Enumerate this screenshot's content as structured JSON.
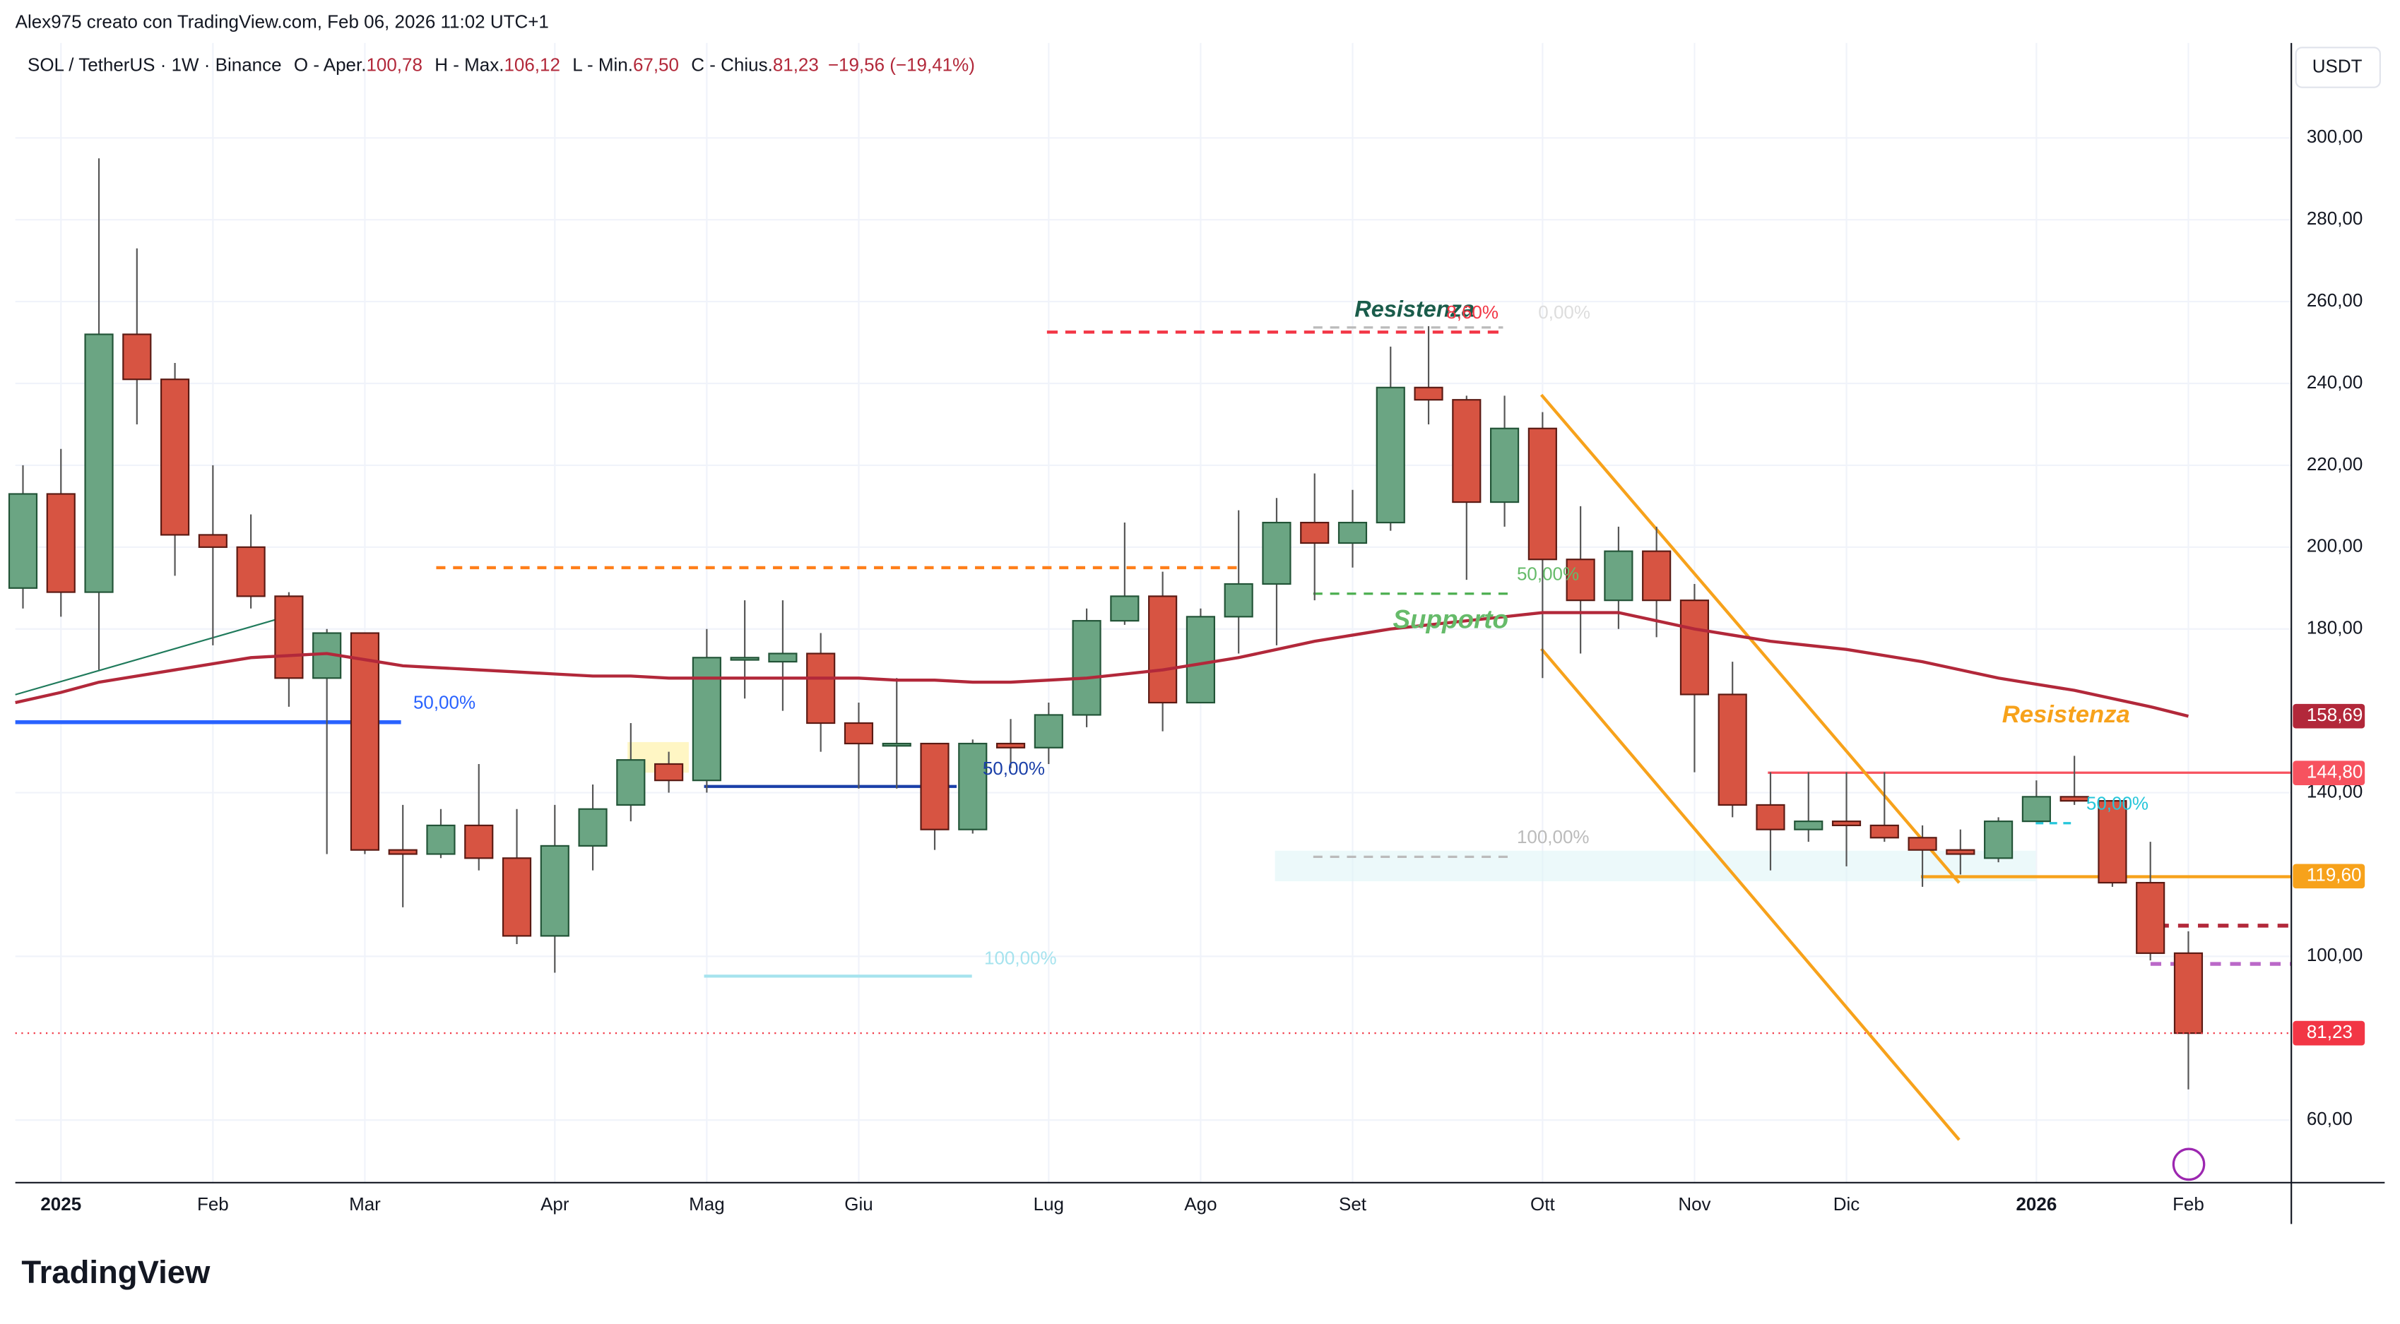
{
  "header": {
    "attribution": "Alex975 creato con TradingView.com, Feb 06, 2026 11:02 UTC+1",
    "logo": "TradingView"
  },
  "chart_data": {
    "type": "candlestick",
    "symbol": "SOL / TetherUS · 1W · Binance",
    "legend": [
      {
        "key": "O - Aper.",
        "value": "100,78"
      },
      {
        "key": "H - Max.",
        "value": "106,12"
      },
      {
        "key": "L - Min.",
        "value": "67,50"
      },
      {
        "key": "C - Chius.",
        "value": "81,23"
      }
    ],
    "change": "−19,56 (−19,41%)",
    "y_unit": "USDT",
    "categories": [
      null,
      "2025",
      null,
      null,
      null,
      "Feb",
      null,
      null,
      null,
      "Mar",
      null,
      null,
      null,
      null,
      "Apr",
      null,
      null,
      null,
      "Mag",
      null,
      null,
      null,
      "Giu",
      null,
      null,
      null,
      null,
      "Lug",
      null,
      null,
      null,
      "Ago",
      null,
      null,
      null,
      "Set",
      null,
      null,
      null,
      null,
      "Ott",
      null,
      null,
      null,
      "Nov",
      null,
      null,
      null,
      "Dic",
      null,
      null,
      null,
      null,
      "2026",
      null,
      null,
      null,
      "Feb"
    ],
    "open": [
      190,
      213,
      189,
      252,
      241,
      203,
      200,
      188,
      168,
      179,
      126,
      125,
      132,
      124,
      105,
      127,
      137,
      147,
      143,
      173,
      172,
      174,
      157,
      152,
      152,
      131,
      152,
      151,
      159,
      182,
      188,
      162,
      183,
      191,
      206,
      201,
      206,
      239,
      236,
      211,
      229,
      197,
      187,
      199,
      187,
      164,
      137,
      131,
      133,
      132,
      129,
      126,
      124,
      133,
      139,
      138,
      118,
      100.78
    ],
    "high": [
      220,
      224,
      295,
      273,
      245,
      220,
      208,
      189,
      180,
      179,
      137,
      136,
      147,
      136,
      137,
      142,
      157,
      150,
      180,
      187,
      187,
      179,
      162,
      168,
      152,
      153,
      158,
      162,
      185,
      206,
      194,
      185,
      209,
      212,
      218,
      214,
      249,
      254,
      237,
      237,
      233,
      210,
      205,
      205,
      191,
      172,
      145,
      145,
      145,
      145,
      132,
      131,
      134,
      143,
      149,
      138,
      128,
      106.12
    ],
    "low": [
      185,
      183,
      170,
      230,
      193,
      176,
      185,
      161,
      125,
      125,
      112,
      124,
      121,
      103,
      96,
      121,
      133,
      140,
      140,
      163,
      160,
      150,
      141,
      141,
      126,
      130,
      146,
      147,
      156,
      181,
      155,
      162,
      174,
      176,
      187,
      195,
      204,
      230,
      192,
      205,
      168,
      174,
      180,
      178,
      145,
      134,
      121,
      128,
      122,
      128,
      117,
      120,
      123,
      133,
      137,
      117,
      99,
      67.5
    ],
    "close": [
      213,
      189,
      252,
      241,
      203,
      200,
      188,
      168,
      179,
      126,
      125,
      132,
      124,
      105,
      127,
      136,
      148,
      143,
      173,
      173,
      174,
      157,
      152,
      152,
      131,
      152,
      151,
      159,
      182,
      188,
      162,
      183,
      191,
      206,
      201,
      206,
      239,
      236,
      211,
      229,
      197,
      187,
      199,
      187,
      164,
      137,
      131,
      133,
      132,
      129,
      126,
      125,
      133,
      139,
      138,
      118,
      100.78,
      81.23
    ],
    "up_color": "#6ba583",
    "down_color": "#d75442",
    "ma_color": "#b2283a",
    "ma_values": [
      162,
      164.5,
      167,
      168.5,
      170,
      171.5,
      173,
      173.5,
      174,
      172.5,
      171,
      170.5,
      170,
      169.5,
      169,
      168.5,
      168.5,
      168,
      168,
      168,
      168,
      168,
      168,
      167.5,
      167.5,
      167,
      167,
      167.5,
      168,
      169,
      170,
      171.5,
      173,
      175,
      177,
      178.5,
      180,
      181,
      182,
      183,
      184,
      184,
      184,
      182,
      180,
      178.5,
      177,
      176,
      175,
      173.5,
      172,
      170,
      168,
      166.5,
      165,
      163,
      161,
      158.69
    ],
    "ylim": [
      44.7,
      323.2
    ],
    "yticks": [
      {
        "value": 60,
        "label": "60,00"
      },
      {
        "value": 100,
        "label": "100,00"
      },
      {
        "value": 140,
        "label": "140,00"
      },
      {
        "value": 180,
        "label": "180,00"
      },
      {
        "value": 200,
        "label": "200,00"
      },
      {
        "value": 220,
        "label": "220,00"
      },
      {
        "value": 240,
        "label": "240,00"
      },
      {
        "value": 260,
        "label": "260,00"
      },
      {
        "value": 280,
        "label": "280,00"
      },
      {
        "value": 300,
        "label": "300,00"
      }
    ],
    "price_labels": [
      {
        "value": 158.69,
        "label": "158,69",
        "color": "#b2283a"
      },
      {
        "value": 144.8,
        "label": "144,80",
        "color": "#f7525f"
      },
      {
        "value": 119.6,
        "label": "119,60",
        "color": "#f7a21b"
      },
      {
        "value": 81.23,
        "label": "81,23",
        "color": "#f23645"
      }
    ],
    "annotations": {
      "resist1": "Resistenza",
      "support": "Supporto",
      "resist2": "Resistenza",
      "fib": [
        "8,60%",
        "50,00%",
        "100,00%",
        "50,00%",
        "50,00%",
        "100,00%",
        "50,00%",
        "0,00%"
      ]
    }
  }
}
